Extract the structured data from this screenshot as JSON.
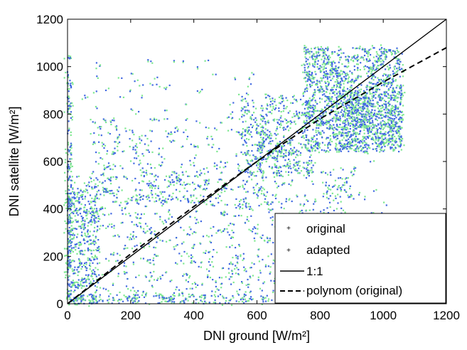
{
  "chart_data": {
    "type": "scatter",
    "xlabel": "DNI ground [W/m²]",
    "ylabel": "DNI satellite [W/m²]",
    "xlim": [
      0,
      1200
    ],
    "ylim": [
      0,
      1200
    ],
    "x_ticks": [
      0,
      200,
      400,
      600,
      800,
      1000,
      1200
    ],
    "y_ticks": [
      0,
      200,
      400,
      600,
      800,
      1000,
      1200
    ],
    "grid": false,
    "legend_position": "bottom-right",
    "series": [
      {
        "name": "original",
        "kind": "scatter",
        "color": "#4169e1",
        "marker": "dot"
      },
      {
        "name": "adapted",
        "kind": "scatter",
        "color": "#7ee890",
        "marker": "dot"
      },
      {
        "name": "1:1",
        "kind": "line",
        "color": "#000000",
        "dash": "solid",
        "x": [
          0,
          1200
        ],
        "y": [
          0,
          1200
        ]
      },
      {
        "name": "polynom (original)",
        "kind": "line",
        "color": "#000000",
        "dash": "dashed",
        "x": [
          0,
          200,
          400,
          600,
          700,
          800,
          1000,
          1200
        ],
        "y": [
          0,
          210,
          410,
          600,
          690,
          780,
          935,
          1080
        ]
      }
    ],
    "clusters": [
      {
        "x": [
          0,
          12
        ],
        "y": [
          0,
          1060
        ],
        "n": 130
      },
      {
        "x": [
          0,
          100
        ],
        "y": [
          0,
          500
        ],
        "n": 240
      },
      {
        "x": [
          0,
          700
        ],
        "y": [
          0,
          40
        ],
        "n": 140
      },
      {
        "x": [
          20,
          900
        ],
        "y": [
          40,
          560
        ],
        "n": 520
      },
      {
        "x": [
          80,
          700
        ],
        "y": [
          420,
          780
        ],
        "n": 260
      },
      {
        "x": [
          50,
          600
        ],
        "y": [
          780,
          1050
        ],
        "n": 45
      },
      {
        "x": [
          550,
          780
        ],
        "y": [
          550,
          880
        ],
        "n": 280
      },
      {
        "x": [
          750,
          1060
        ],
        "y": [
          640,
          1080
        ],
        "n": 900
      },
      {
        "x": [
          850,
          1060
        ],
        "y": [
          650,
          900
        ],
        "n": 280
      },
      {
        "x": [
          750,
          1060
        ],
        "y": [
          0,
          600
        ],
        "n": 70
      }
    ]
  }
}
